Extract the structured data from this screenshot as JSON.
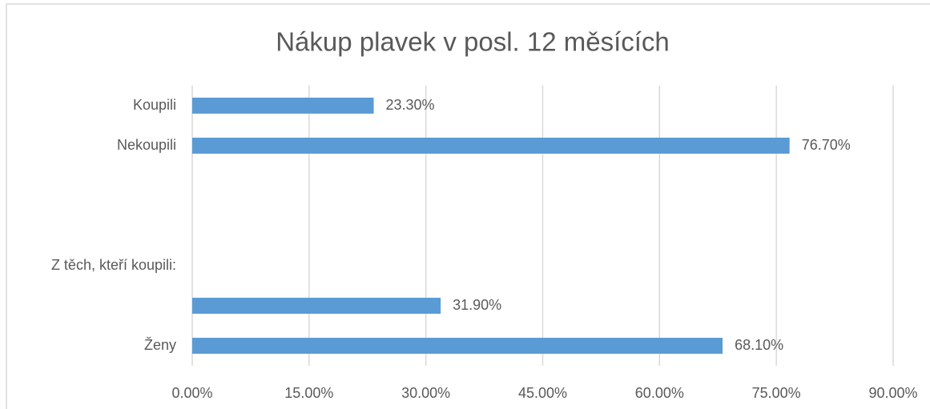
{
  "chart_data": {
    "type": "bar",
    "orientation": "horizontal",
    "title": "Nákup plavek v posl. 12 měsících",
    "categories": [
      "Koupili",
      "Nekoupili",
      null,
      null,
      "Z těch, kteří koupili:",
      null,
      "Ženy"
    ],
    "values": [
      23.3,
      76.7,
      null,
      null,
      null,
      31.9,
      68.1
    ],
    "value_labels": [
      "23.30%",
      "76.70%",
      null,
      null,
      null,
      "31.90%",
      "68.10%"
    ],
    "color": "#5b9bd5",
    "xlim": [
      0,
      90
    ],
    "xticks": [
      {
        "value": 0,
        "label": "0.00%"
      },
      {
        "value": 15,
        "label": "15.00%"
      },
      {
        "value": 30,
        "label": "30.00%"
      },
      {
        "value": 45,
        "label": "45.00%"
      },
      {
        "value": 60,
        "label": "60.00%"
      },
      {
        "value": 75,
        "label": "75.00%"
      },
      {
        "value": 90,
        "label": "90.00%"
      }
    ],
    "grid": true
  }
}
